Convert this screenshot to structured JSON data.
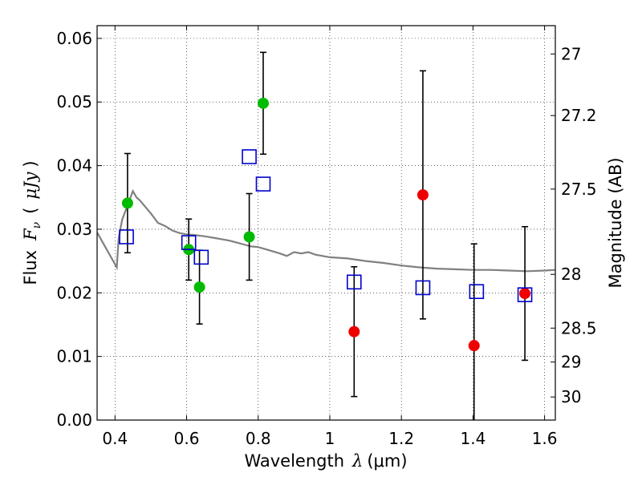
{
  "chart_data": {
    "type": "scatter",
    "xlabel": {
      "text": "Wavelength",
      "var": "λ",
      "unit": "(μm)"
    },
    "ylabel": {
      "text": "Flux",
      "var": "F",
      "sub": "ν",
      "unit_open": "(",
      "unit": "μJy",
      "unit_close": ")"
    },
    "y2label": "Magnitude (AB)",
    "xlim": [
      0.35,
      1.63
    ],
    "ylim": [
      0.0,
      0.062
    ],
    "grid": true,
    "xticks": [
      {
        "value": 0.4,
        "label": "0.4"
      },
      {
        "value": 0.6,
        "label": "0.6"
      },
      {
        "value": 0.8,
        "label": "0.8"
      },
      {
        "value": 1.0,
        "label": "1"
      },
      {
        "value": 1.2,
        "label": "1.2"
      },
      {
        "value": 1.4,
        "label": "1.4"
      },
      {
        "value": 1.6,
        "label": "1.6"
      }
    ],
    "yticks": [
      {
        "value": 0.0,
        "label": "0.00"
      },
      {
        "value": 0.01,
        "label": "0.01"
      },
      {
        "value": 0.02,
        "label": "0.02"
      },
      {
        "value": 0.03,
        "label": "0.03"
      },
      {
        "value": 0.04,
        "label": "0.04"
      },
      {
        "value": 0.05,
        "label": "0.05"
      },
      {
        "value": 0.06,
        "label": "0.06"
      }
    ],
    "y2ticks": [
      {
        "value": 27,
        "label": "27"
      },
      {
        "value": 27.2,
        "label": "27.2"
      },
      {
        "value": 27.5,
        "label": "27.5"
      },
      {
        "value": 28,
        "label": "28"
      },
      {
        "value": 28.5,
        "label": "28.5"
      },
      {
        "value": 29,
        "label": "29"
      },
      {
        "value": 30,
        "label": "30"
      }
    ],
    "series": [
      {
        "marker": "circle",
        "color": "#00bb00",
        "points": [
          {
            "x": 0.435,
            "y": 0.0341,
            "err": 0.0078
          },
          {
            "x": 0.606,
            "y": 0.0268,
            "err": 0.0048
          },
          {
            "x": 0.636,
            "y": 0.0209,
            "err": 0.0058
          },
          {
            "x": 0.775,
            "y": 0.0288,
            "err": 0.0068
          },
          {
            "x": 0.814,
            "y": 0.0498,
            "err": 0.008
          }
        ]
      },
      {
        "marker": "circle",
        "color": "#ee0000",
        "points": [
          {
            "x": 1.068,
            "y": 0.0139,
            "err": 0.0102
          },
          {
            "x": 1.26,
            "y": 0.0354,
            "err": 0.0195
          },
          {
            "x": 1.403,
            "y": 0.0117,
            "err": 0.016
          },
          {
            "x": 1.545,
            "y": 0.0199,
            "err": 0.0105
          }
        ]
      },
      {
        "marker": "open-square",
        "color": "#0000cc",
        "points": [
          {
            "x": 0.432,
            "y": 0.0288
          },
          {
            "x": 0.606,
            "y": 0.0279
          },
          {
            "x": 0.641,
            "y": 0.0256
          },
          {
            "x": 0.775,
            "y": 0.0414
          },
          {
            "x": 0.814,
            "y": 0.0371
          },
          {
            "x": 1.068,
            "y": 0.0217
          },
          {
            "x": 1.26,
            "y": 0.0208
          },
          {
            "x": 1.41,
            "y": 0.0202
          },
          {
            "x": 1.545,
            "y": 0.0197
          }
        ]
      }
    ],
    "model_spectrum": {
      "color": "#808080",
      "x": [
        0.35,
        0.37,
        0.39,
        0.405,
        0.41,
        0.42,
        0.43,
        0.44,
        0.45,
        0.46,
        0.47,
        0.485,
        0.5,
        0.52,
        0.54,
        0.56,
        0.58,
        0.6,
        0.62,
        0.65,
        0.68,
        0.7,
        0.72,
        0.74,
        0.76,
        0.78,
        0.8,
        0.83,
        0.86,
        0.88,
        0.9,
        0.92,
        0.94,
        0.96,
        0.98,
        1.0,
        1.05,
        1.1,
        1.15,
        1.2,
        1.25,
        1.3,
        1.35,
        1.4,
        1.45,
        1.5,
        1.55,
        1.6,
        1.63
      ],
      "y": [
        0.0295,
        0.0275,
        0.0255,
        0.024,
        0.0285,
        0.0315,
        0.033,
        0.0345,
        0.036,
        0.035,
        0.0345,
        0.0335,
        0.0325,
        0.031,
        0.0305,
        0.0298,
        0.0294,
        0.0292,
        0.0291,
        0.0289,
        0.0286,
        0.0284,
        0.0282,
        0.0279,
        0.0276,
        0.0273,
        0.0272,
        0.0267,
        0.0262,
        0.0258,
        0.0264,
        0.0262,
        0.0264,
        0.026,
        0.0258,
        0.0256,
        0.0254,
        0.025,
        0.0247,
        0.0243,
        0.024,
        0.0238,
        0.0237,
        0.0236,
        0.0236,
        0.0235,
        0.0234,
        0.0235,
        0.0236
      ]
    }
  }
}
